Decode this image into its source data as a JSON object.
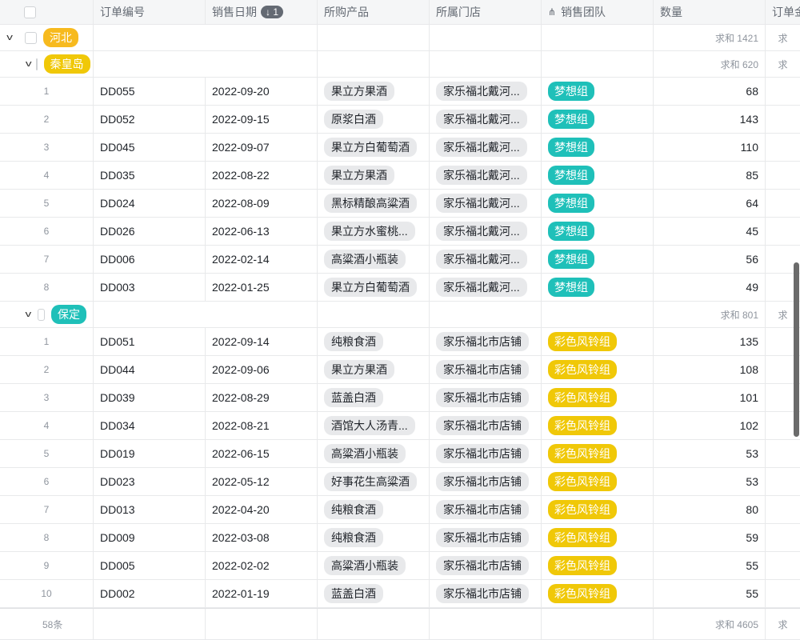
{
  "header": {
    "columns": [
      "订单编号",
      "销售日期",
      "所购产品",
      "所属门店",
      "销售团队",
      "数量",
      "订单金"
    ],
    "sort_badge": "↓ 1"
  },
  "groups": [
    {
      "label": "河北",
      "color": "#f7ba1e",
      "sum": "求和 1421",
      "sum_next": "求"
    },
    {
      "label": "秦皇岛",
      "color": "#f0c808",
      "sum": "求和 620",
      "sum_next": "求",
      "team_color": "#1fc0b9",
      "rows": [
        [
          "1",
          "DD055",
          "2022-09-20",
          "果立方果酒",
          "家乐福北戴河...",
          "梦想组",
          "68"
        ],
        [
          "2",
          "DD052",
          "2022-09-15",
          "原浆白酒",
          "家乐福北戴河...",
          "梦想组",
          "143"
        ],
        [
          "3",
          "DD045",
          "2022-09-07",
          "果立方白葡萄酒",
          "家乐福北戴河...",
          "梦想组",
          "110"
        ],
        [
          "4",
          "DD035",
          "2022-08-22",
          "果立方果酒",
          "家乐福北戴河...",
          "梦想组",
          "85"
        ],
        [
          "5",
          "DD024",
          "2022-08-09",
          "黑标精酿高粱酒",
          "家乐福北戴河...",
          "梦想组",
          "64"
        ],
        [
          "6",
          "DD026",
          "2022-06-13",
          "果立方水蜜桃...",
          "家乐福北戴河...",
          "梦想组",
          "45"
        ],
        [
          "7",
          "DD006",
          "2022-02-14",
          "高粱酒小瓶装",
          "家乐福北戴河...",
          "梦想组",
          "56"
        ],
        [
          "8",
          "DD003",
          "2022-01-25",
          "果立方白葡萄酒",
          "家乐福北戴河...",
          "梦想组",
          "49"
        ]
      ]
    },
    {
      "label": "保定",
      "color": "#1fc0b9",
      "sum": "求和 801",
      "sum_next": "求",
      "team_color": "#f0c808",
      "rows": [
        [
          "1",
          "DD051",
          "2022-09-14",
          "纯粮食酒",
          "家乐福北市店铺",
          "彩色风铃组",
          "135"
        ],
        [
          "2",
          "DD044",
          "2022-09-06",
          "果立方果酒",
          "家乐福北市店铺",
          "彩色风铃组",
          "108"
        ],
        [
          "3",
          "DD039",
          "2022-08-29",
          "蓝盖白酒",
          "家乐福北市店铺",
          "彩色风铃组",
          "101"
        ],
        [
          "4",
          "DD034",
          "2022-08-21",
          "酒馆大人汤青...",
          "家乐福北市店铺",
          "彩色风铃组",
          "102"
        ],
        [
          "5",
          "DD019",
          "2022-06-15",
          "高粱酒小瓶装",
          "家乐福北市店铺",
          "彩色风铃组",
          "53"
        ],
        [
          "6",
          "DD023",
          "2022-05-12",
          "好事花生高粱酒",
          "家乐福北市店铺",
          "彩色风铃组",
          "53"
        ],
        [
          "7",
          "DD013",
          "2022-04-20",
          "纯粮食酒",
          "家乐福北市店铺",
          "彩色风铃组",
          "80"
        ],
        [
          "8",
          "DD009",
          "2022-03-08",
          "纯粮食酒",
          "家乐福北市店铺",
          "彩色风铃组",
          "59"
        ],
        [
          "9",
          "DD005",
          "2022-02-02",
          "高粱酒小瓶装",
          "家乐福北市店铺",
          "彩色风铃组",
          "55"
        ],
        [
          "10",
          "DD002",
          "2022-01-19",
          "蓝盖白酒",
          "家乐福北市店铺",
          "彩色风铃组",
          "55"
        ]
      ]
    }
  ],
  "footer": {
    "count": "58条",
    "sum": "求和 4605",
    "sum_next": "求"
  }
}
